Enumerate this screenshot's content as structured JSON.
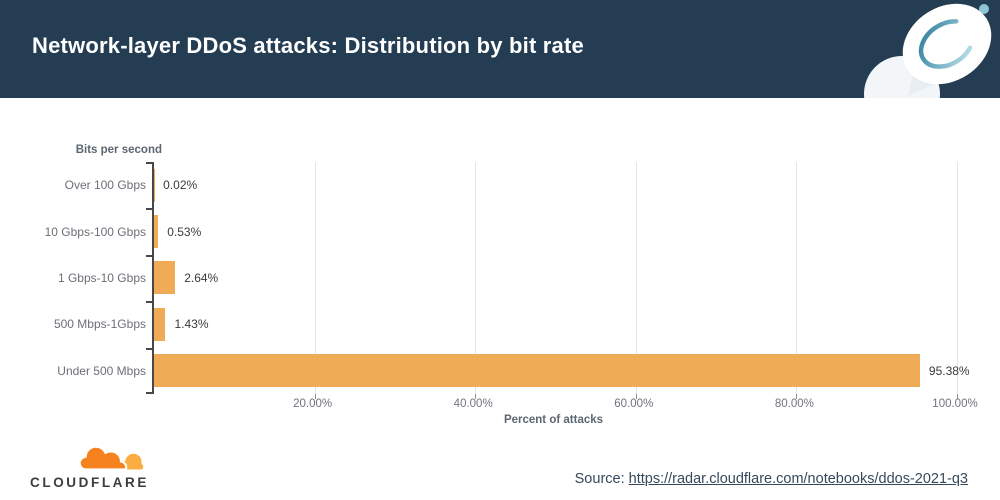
{
  "header": {
    "title": "Network-layer DDoS attacks: Distribution by bit rate"
  },
  "chart_data": {
    "type": "bar",
    "orientation": "horizontal",
    "title": "Network-layer DDoS attacks: Distribution by bit rate",
    "categories": [
      "Over 100 Gbps",
      "10 Gbps-100 Gbps",
      "1 Gbps-10 Gbps",
      "500 Mbps-1Gbps",
      "Under 500 Mbps"
    ],
    "values": [
      0.02,
      0.53,
      2.64,
      1.43,
      95.38
    ],
    "value_labels": [
      "0.02%",
      "0.53%",
      "2.64%",
      "1.43%",
      "95.38%"
    ],
    "ylabel": "Bits per second",
    "xlabel": "Percent of attacks",
    "xlim": [
      0,
      100
    ],
    "xticks": [
      20,
      40,
      60,
      80,
      100
    ],
    "xtick_labels": [
      "20.00%",
      "40.00%",
      "60.00%",
      "80.00%",
      "100.00%"
    ],
    "grid": "vertical-gridlines",
    "legend": "none",
    "bar_color": "#f0ab57"
  },
  "colors": {
    "header_bg": "#243d53",
    "bar": "#f0ab57",
    "gridline": "#e4e4e9",
    "axis": "#47474d",
    "logo_orange": "#f6821f",
    "logo_light_orange": "#fbad41"
  },
  "footer": {
    "wordmark": "CLOUDFLARE",
    "source_prefix": "Source: ",
    "source_link": "https://radar.cloudflare.com/notebooks/ddos-2021-q3"
  },
  "icons": {
    "satellite": "satellite-dish-illustration",
    "cloud": "cloudflare-cloud-logo"
  }
}
